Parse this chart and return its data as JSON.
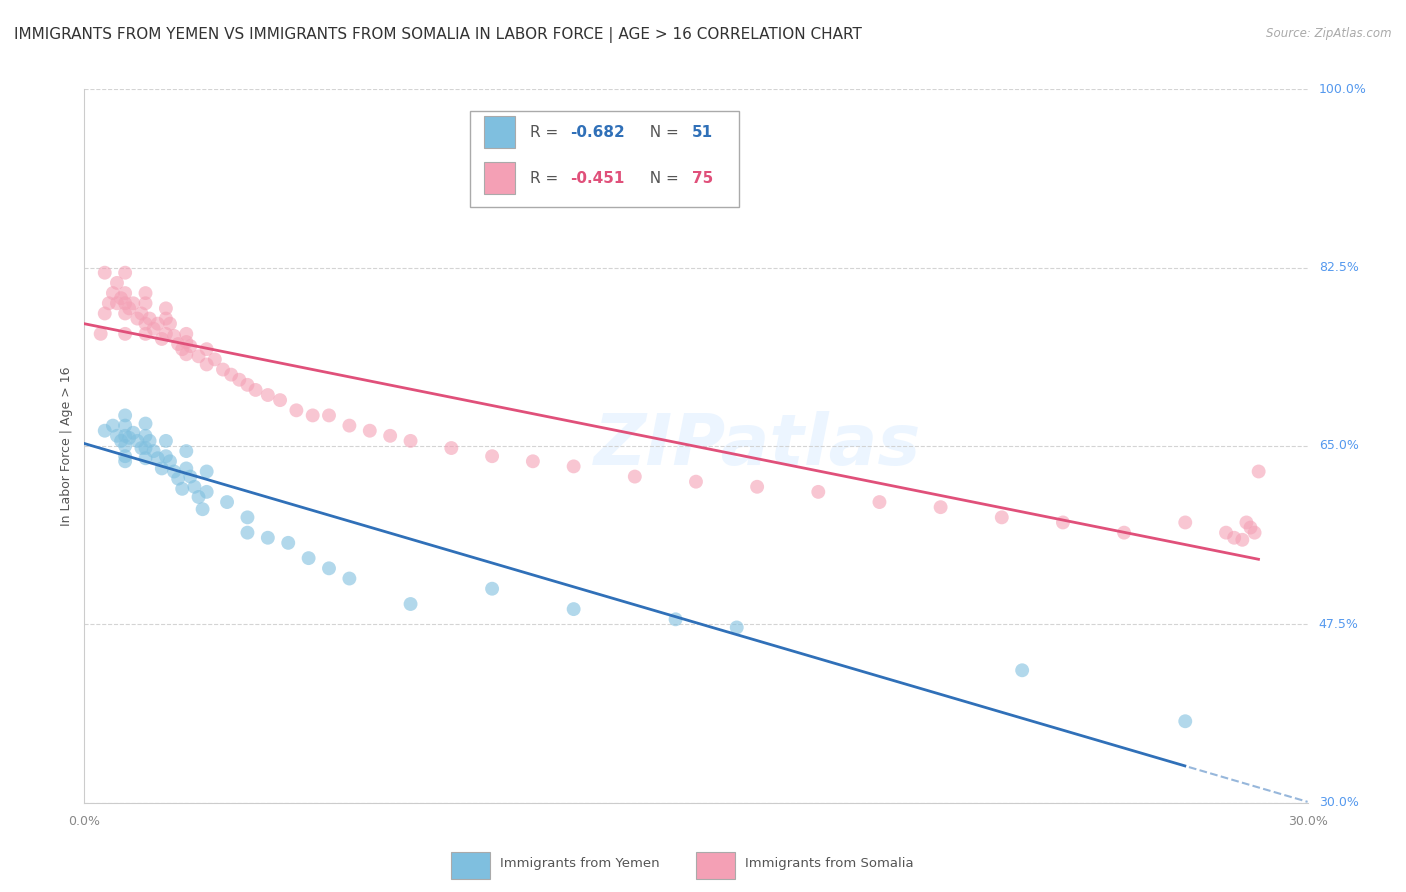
{
  "title": "IMMIGRANTS FROM YEMEN VS IMMIGRANTS FROM SOMALIA IN LABOR FORCE | AGE > 16 CORRELATION CHART",
  "source": "Source: ZipAtlas.com",
  "ylabel": "In Labor Force | Age > 16",
  "xlim": [
    0.0,
    0.3
  ],
  "ylim": [
    0.3,
    1.0
  ],
  "ytick_positions": [
    0.3,
    0.475,
    0.65,
    0.825,
    1.0
  ],
  "ytick_labels": [
    "30.0%",
    "47.5%",
    "65.0%",
    "82.5%",
    "100.0%"
  ],
  "xtick_positions": [
    0.0,
    0.3
  ],
  "xtick_labels": [
    "0.0%",
    "30.0%"
  ],
  "yemen_R": -0.682,
  "yemen_N": 51,
  "somalia_R": -0.451,
  "somalia_N": 75,
  "yemen_color": "#7fbfdf",
  "somalia_color": "#f4a0b5",
  "yemen_line_color": "#3070b8",
  "somalia_line_color": "#e0507a",
  "background_color": "#ffffff",
  "grid_color": "#d0d0d0",
  "watermark": "ZIPatlas",
  "right_axis_color": "#5599ee",
  "yemen_scatter_x": [
    0.005,
    0.007,
    0.008,
    0.009,
    0.01,
    0.01,
    0.01,
    0.01,
    0.01,
    0.01,
    0.011,
    0.012,
    0.013,
    0.014,
    0.015,
    0.015,
    0.015,
    0.015,
    0.016,
    0.017,
    0.018,
    0.019,
    0.02,
    0.02,
    0.021,
    0.022,
    0.023,
    0.024,
    0.025,
    0.025,
    0.026,
    0.027,
    0.028,
    0.029,
    0.03,
    0.03,
    0.035,
    0.04,
    0.04,
    0.045,
    0.05,
    0.055,
    0.06,
    0.065,
    0.08,
    0.1,
    0.12,
    0.145,
    0.16,
    0.23,
    0.27
  ],
  "yemen_scatter_y": [
    0.665,
    0.67,
    0.66,
    0.655,
    0.68,
    0.67,
    0.66,
    0.65,
    0.64,
    0.635,
    0.658,
    0.663,
    0.655,
    0.648,
    0.672,
    0.66,
    0.648,
    0.638,
    0.655,
    0.645,
    0.638,
    0.628,
    0.655,
    0.64,
    0.635,
    0.625,
    0.618,
    0.608,
    0.645,
    0.628,
    0.62,
    0.61,
    0.6,
    0.588,
    0.625,
    0.605,
    0.595,
    0.58,
    0.565,
    0.56,
    0.555,
    0.54,
    0.53,
    0.52,
    0.495,
    0.51,
    0.49,
    0.48,
    0.472,
    0.43,
    0.38
  ],
  "somalia_scatter_x": [
    0.004,
    0.005,
    0.005,
    0.006,
    0.007,
    0.008,
    0.008,
    0.009,
    0.01,
    0.01,
    0.01,
    0.01,
    0.01,
    0.011,
    0.012,
    0.013,
    0.014,
    0.015,
    0.015,
    0.015,
    0.015,
    0.016,
    0.017,
    0.018,
    0.019,
    0.02,
    0.02,
    0.02,
    0.021,
    0.022,
    0.023,
    0.024,
    0.025,
    0.025,
    0.025,
    0.026,
    0.028,
    0.03,
    0.03,
    0.032,
    0.034,
    0.036,
    0.038,
    0.04,
    0.042,
    0.045,
    0.048,
    0.052,
    0.056,
    0.06,
    0.065,
    0.07,
    0.075,
    0.08,
    0.09,
    0.1,
    0.11,
    0.12,
    0.135,
    0.15,
    0.165,
    0.18,
    0.195,
    0.21,
    0.225,
    0.24,
    0.255,
    0.27,
    0.28,
    0.282,
    0.284,
    0.285,
    0.286,
    0.287,
    0.288
  ],
  "somalia_scatter_y": [
    0.76,
    0.78,
    0.82,
    0.79,
    0.8,
    0.79,
    0.81,
    0.795,
    0.82,
    0.8,
    0.78,
    0.79,
    0.76,
    0.785,
    0.79,
    0.775,
    0.78,
    0.8,
    0.79,
    0.77,
    0.76,
    0.775,
    0.765,
    0.77,
    0.755,
    0.785,
    0.775,
    0.76,
    0.77,
    0.758,
    0.75,
    0.745,
    0.76,
    0.752,
    0.74,
    0.748,
    0.738,
    0.745,
    0.73,
    0.735,
    0.725,
    0.72,
    0.715,
    0.71,
    0.705,
    0.7,
    0.695,
    0.685,
    0.68,
    0.68,
    0.67,
    0.665,
    0.66,
    0.655,
    0.648,
    0.64,
    0.635,
    0.63,
    0.62,
    0.615,
    0.61,
    0.605,
    0.595,
    0.59,
    0.58,
    0.575,
    0.565,
    0.575,
    0.565,
    0.56,
    0.558,
    0.575,
    0.57,
    0.565,
    0.625
  ],
  "title_fontsize": 11,
  "axis_label_fontsize": 9,
  "tick_fontsize": 9,
  "legend_fontsize": 11
}
